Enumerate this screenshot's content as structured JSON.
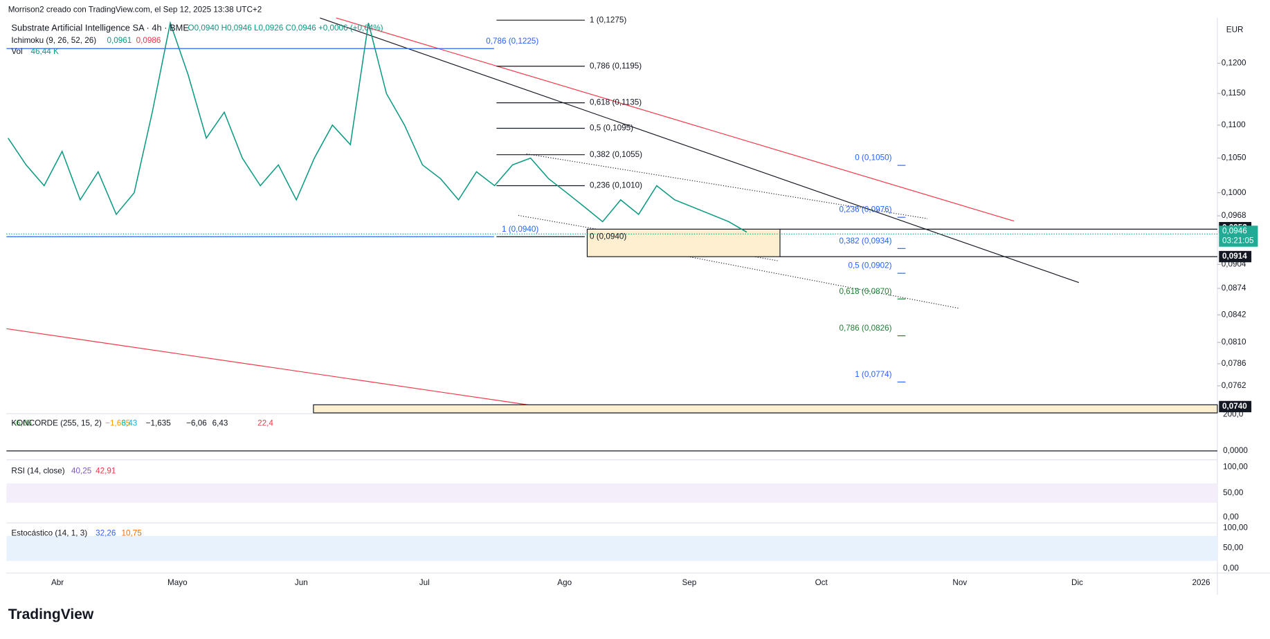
{
  "header": {
    "credit": "Morrison2 creado con TradingView.com, el Sep 12, 2025 13:38 UTC+2",
    "symbol": "Substrate Artificial Intelligence SA · 4h · BME",
    "ohlc": "O0,0940 H0,0946 L0,0926 C0,0946 +0,0006 (+0,64%)",
    "currency": "EUR"
  },
  "indicators": {
    "ichimoku": {
      "name": "Ichimoku (9, 26, 52, 26)",
      "v1": "0,0961",
      "v2": "0,0986"
    },
    "volume": {
      "name": "Vol",
      "value": "46,44 K"
    },
    "koncorde": {
      "name": "KONCORDE (255, 15, 2)",
      "values": [
        "−6,06",
        "−1,635",
        "6,43",
        "−1,635",
        "−6,06",
        "6,43",
        "22,4"
      ]
    },
    "rsi": {
      "name": "RSI (14, close)",
      "v1": "40,25",
      "v2": "42,91"
    },
    "stoch": {
      "name": "Estocástico (14, 1, 3)",
      "v1": "32,26",
      "v2": "10,75"
    }
  },
  "price_axis": {
    "ticks": [
      {
        "value": 0.12,
        "label": "0,1200"
      },
      {
        "value": 0.115,
        "label": "0,1150"
      },
      {
        "value": 0.11,
        "label": "0,1100"
      },
      {
        "value": 0.105,
        "label": "0,1050"
      },
      {
        "value": 0.1,
        "label": "0,1000"
      },
      {
        "value": 0.0968,
        "label": "0,0968"
      },
      {
        "value": 0.0904,
        "label": "0,0904"
      },
      {
        "value": 0.0874,
        "label": "0,0874"
      },
      {
        "value": 0.0842,
        "label": "0,0842"
      },
      {
        "value": 0.081,
        "label": "0,0810"
      },
      {
        "value": 0.0786,
        "label": "0,0786"
      },
      {
        "value": 0.0762,
        "label": "0,0762"
      }
    ],
    "badges": [
      {
        "value": 0.0952,
        "label": "0,0952"
      },
      {
        "value": 0.0914,
        "label": "0,0914"
      },
      {
        "value": 0.074,
        "label": "0,0740"
      }
    ],
    "last": {
      "value": 0.0946,
      "label": "0,0946",
      "countdown": "03:21:05"
    }
  },
  "pane_axes": {
    "koncorde": [
      "200,0",
      "0,0000"
    ],
    "rsi": [
      "100,00",
      "50,00",
      "0,00"
    ],
    "stoch": [
      "100,00",
      "50,00",
      "0,00"
    ]
  },
  "time_axis": [
    "Abr",
    "Mayo",
    "Jun",
    "Jul",
    "Ago",
    "Sep",
    "Oct",
    "Nov",
    "Dic",
    "2026"
  ],
  "fib_left": [
    {
      "value": 0.1275,
      "label": "1 (0,1275)"
    },
    {
      "value": 0.1195,
      "label": "0,786 (0,1195)"
    },
    {
      "value": 0.1135,
      "label": "0,618 (0,1135)"
    },
    {
      "value": 0.1095,
      "label": "0,5 (0,1095)"
    },
    {
      "value": 0.1055,
      "label": "0,382 (0,1055)"
    },
    {
      "value": 0.101,
      "label": "0,236 (0,1010)"
    },
    {
      "value": 0.094,
      "label": "0 (0,0940)"
    }
  ],
  "fib_blue": [
    {
      "value": 0.1225,
      "label": "0,786 (0,1225)"
    },
    {
      "value": 0.094,
      "label": "1 (0,0940)"
    }
  ],
  "fib_right": [
    {
      "value": 0.105,
      "label": "0 (0,1050)"
    },
    {
      "value": 0.0976,
      "label": "0,236 (0,0976)"
    },
    {
      "value": 0.0934,
      "label": "0,382 (0,0934)"
    },
    {
      "value": 0.0902,
      "label": "0,5 (0,0902)"
    },
    {
      "value": 0.087,
      "label": "0,618 (0,0870)"
    },
    {
      "value": 0.0826,
      "label": "0,786 (0,0826)"
    },
    {
      "value": 0.0774,
      "label": "1 (0,0774)"
    }
  ],
  "price": {
    "closes": [
      0.108,
      0.104,
      0.101,
      0.106,
      0.099,
      0.103,
      0.097,
      0.1,
      0.112,
      0.127,
      0.118,
      0.108,
      0.112,
      0.105,
      0.101,
      0.104,
      0.099,
      0.105,
      0.11,
      0.107,
      0.127,
      0.115,
      0.11,
      0.104,
      0.102,
      0.099,
      0.103,
      0.101,
      0.104,
      0.105,
      0.102,
      0.1,
      0.098,
      0.096,
      0.099,
      0.097,
      0.101,
      0.099,
      0.098,
      0.097,
      0.096,
      0.0946
    ]
  },
  "logo": "TradingView"
}
